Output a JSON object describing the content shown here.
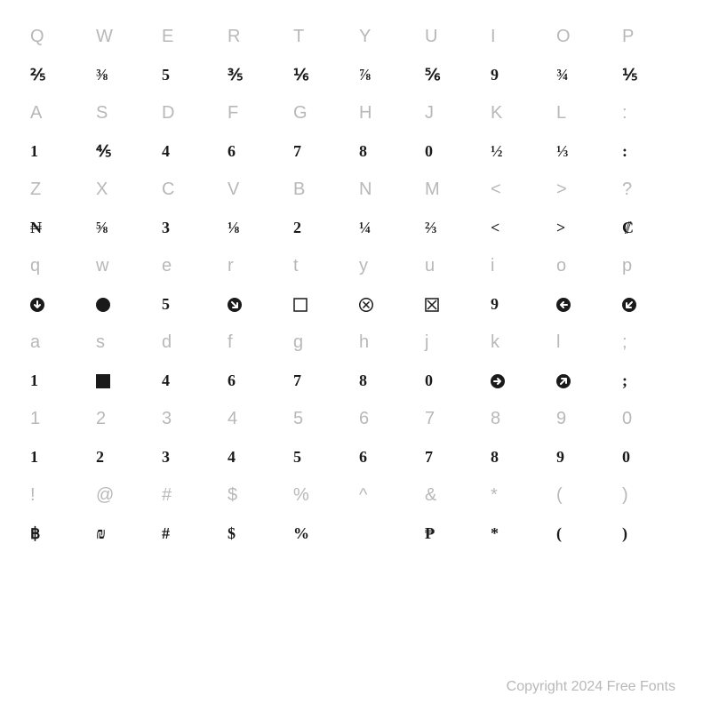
{
  "rows": [
    {
      "keys": [
        "Q",
        "W",
        "E",
        "R",
        "T",
        "Y",
        "U",
        "I",
        "O",
        "P"
      ],
      "glyphs": [
        "⅖",
        "⅜",
        "5",
        "⅗",
        "⅙",
        "⅞",
        "⅚",
        "9",
        "¾",
        "⅕"
      ]
    },
    {
      "keys": [
        "A",
        "S",
        "D",
        "F",
        "G",
        "H",
        "J",
        "K",
        "L",
        ":"
      ],
      "glyphs": [
        "1",
        "⅘",
        "4",
        "6",
        "7",
        "8",
        "0",
        "½",
        "⅓",
        ":"
      ]
    },
    {
      "keys": [
        "Z",
        "X",
        "C",
        "V",
        "B",
        "N",
        "M",
        "<",
        ">",
        "?"
      ],
      "glyphs": [
        "₦",
        "⅝",
        "3",
        "⅛",
        "2",
        "¼",
        "⅔",
        "<",
        ">",
        "₡"
      ]
    },
    {
      "keys": [
        "q",
        "w",
        "e",
        "r",
        "t",
        "y",
        "u",
        "i",
        "o",
        "p"
      ],
      "glyphs": [
        "icon:down",
        "icon:circle",
        "5",
        "icon:downright",
        "icon:square-outline",
        "icon:circle-x",
        "icon:square-x",
        "9",
        "icon:left",
        "icon:downleft"
      ]
    },
    {
      "keys": [
        "a",
        "s",
        "d",
        "f",
        "g",
        "h",
        "j",
        "k",
        "l",
        ";"
      ],
      "glyphs": [
        "1",
        "icon:square-fill",
        "4",
        "6",
        "7",
        "8",
        "0",
        "icon:right",
        "icon:upright",
        ";"
      ]
    },
    {
      "keys": [
        "1",
        "2",
        "3",
        "4",
        "5",
        "6",
        "7",
        "8",
        "9",
        "0"
      ],
      "glyphs": [
        "1",
        "2",
        "3",
        "4",
        "5",
        "6",
        "7",
        "8",
        "9",
        "0"
      ]
    },
    {
      "keys": [
        "!",
        "@",
        "#",
        "$",
        "%",
        "^",
        "&",
        "*",
        "(",
        ")"
      ],
      "glyphs": [
        "฿",
        "₪",
        "#",
        "$",
        "%",
        "",
        "₱",
        "*",
        "(",
        ")"
      ]
    }
  ],
  "copyright": "Copyright 2024 Free Fonts",
  "colors": {
    "key": "#b8b8b8",
    "glyph": "#1a1a1a",
    "background": "#ffffff"
  },
  "icon_size": 16,
  "font_sizes": {
    "key": 20,
    "glyph": 18,
    "copyright": 16
  }
}
